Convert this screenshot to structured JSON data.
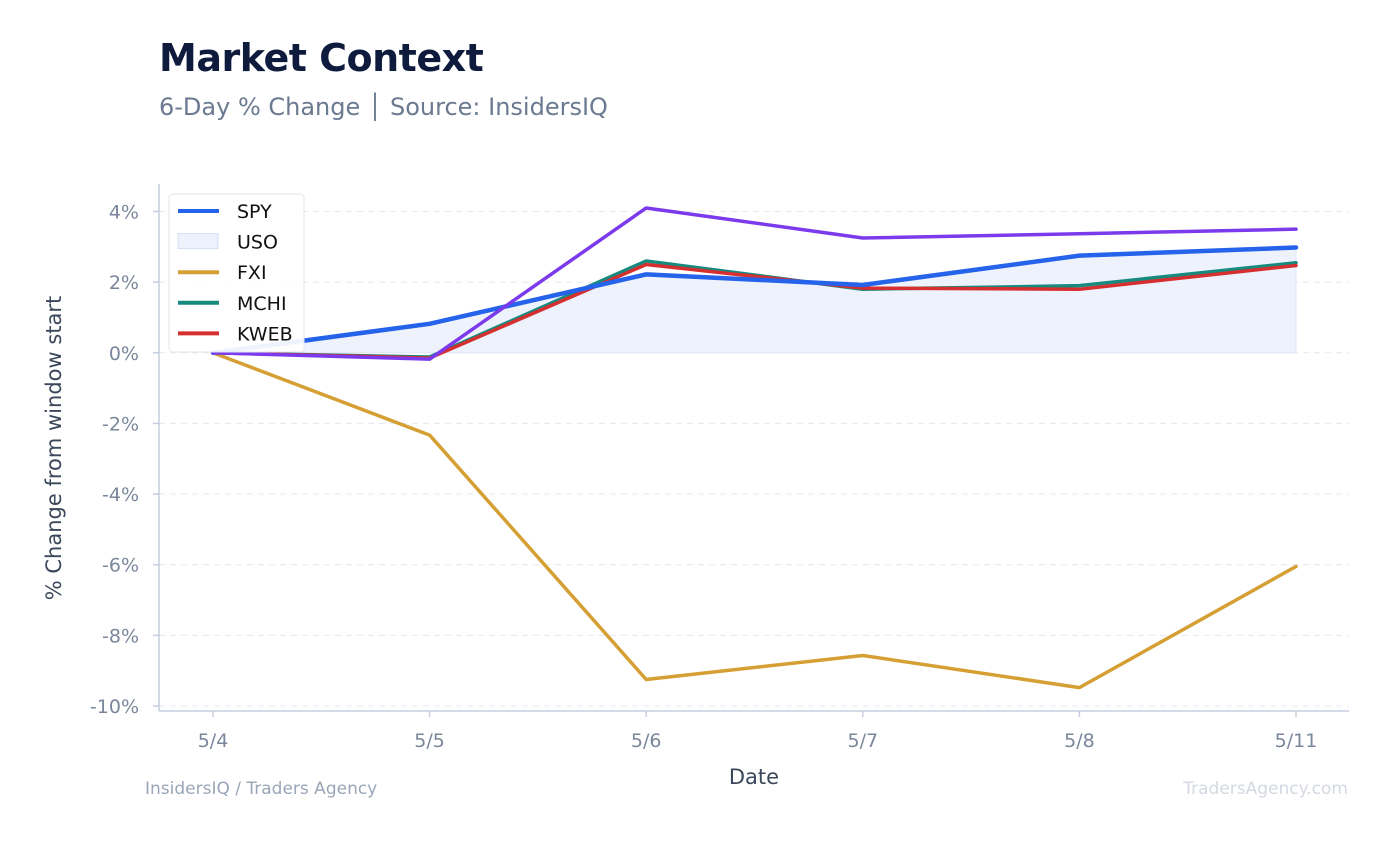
{
  "header": {
    "title": "Market Context",
    "subtitle": "6-Day % Change │ Source: InsidersIQ"
  },
  "footer": {
    "left": "InsidersIQ / Traders Agency",
    "right": "TradersAgency.com"
  },
  "chart_data": {
    "type": "line",
    "xlabel": "Date",
    "ylabel": "% Change from window start",
    "categories": [
      "5/4",
      "5/5",
      "5/6",
      "5/7",
      "5/8",
      "5/11"
    ],
    "ylim": [
      -10,
      4
    ],
    "yticks": [
      4,
      2,
      0,
      -2,
      -4,
      -6,
      -8,
      -10
    ],
    "ytick_labels": [
      "4%",
      "2%",
      "0%",
      "-2%",
      "-4%",
      "-6%",
      "-8%",
      "-10%"
    ],
    "grid": true,
    "legend": "top-left",
    "series": [
      {
        "name": "SPY",
        "color": "#2563eb",
        "style": "line",
        "values": [
          0,
          0.82,
          2.22,
          1.92,
          2.75,
          2.98
        ]
      },
      {
        "name": "USO",
        "color": "#7c3aed",
        "fill": "#eef2fd",
        "style": "area",
        "values": [
          0,
          -0.18,
          4.1,
          3.25,
          3.37,
          3.5
        ]
      },
      {
        "name": "FXI",
        "color": "#d59f33",
        "style": "line",
        "values": [
          0,
          -2.33,
          -9.25,
          -8.57,
          -9.48,
          -6.05
        ]
      },
      {
        "name": "MCHI",
        "color": "#168a7e",
        "style": "line",
        "values": [
          0,
          -0.12,
          2.6,
          1.8,
          1.9,
          2.55
        ]
      },
      {
        "name": "KWEB",
        "color": "#d62f2f",
        "style": "line",
        "values": [
          0,
          -0.15,
          2.5,
          1.83,
          1.8,
          2.47
        ]
      }
    ]
  }
}
